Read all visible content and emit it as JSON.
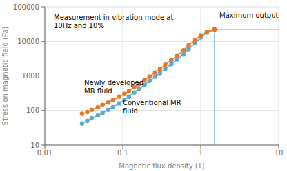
{
  "chart_data": {
    "type": "line",
    "log": true,
    "grid": true,
    "xlabel": "Magnetic flux density (T)",
    "ylabel": "Stress on magnetic field (Pa)",
    "xlim": [
      0.01,
      10
    ],
    "ylim": [
      10,
      100000
    ],
    "xticks": [
      0.01,
      0.1,
      1,
      10
    ],
    "yticks": [
      10,
      100,
      1000,
      10000,
      100000
    ],
    "annotations": [
      {
        "text": "Measurement in vibration mode at\n10Hz and 10%"
      }
    ],
    "max_output": {
      "x": 1.5,
      "y": 22000,
      "label": "Maximum output",
      "color": "#5BA8D4"
    },
    "x": [
      0.03,
      0.035,
      0.04,
      0.048,
      0.055,
      0.065,
      0.075,
      0.09,
      0.105,
      0.12,
      0.14,
      0.16,
      0.19,
      0.22,
      0.26,
      0.3,
      0.35,
      0.42,
      0.5,
      0.6,
      0.7,
      0.85,
      1.0,
      1.2,
      1.5
    ],
    "series": [
      {
        "name": "Conventional MR\nfluid",
        "color": "#5BA8D4",
        "marker": "circle",
        "line_style": "solid",
        "values": [
          42,
          50,
          60,
          72,
          85,
          105,
          125,
          160,
          200,
          250,
          330,
          420,
          550,
          720,
          950,
          1200,
          1600,
          2200,
          3000,
          4200,
          6000,
          9000,
          13000,
          18000,
          22000
        ]
      },
      {
        "name": "Newly developed\nMR fluid",
        "color": "#E87722",
        "marker": "circle",
        "line_style": "solid",
        "values": [
          80,
          90,
          105,
          125,
          145,
          170,
          200,
          250,
          300,
          370,
          470,
          580,
          750,
          960,
          1250,
          1600,
          2100,
          2900,
          3900,
          5500,
          7800,
          11000,
          15000,
          19000,
          22000
        ]
      }
    ]
  }
}
